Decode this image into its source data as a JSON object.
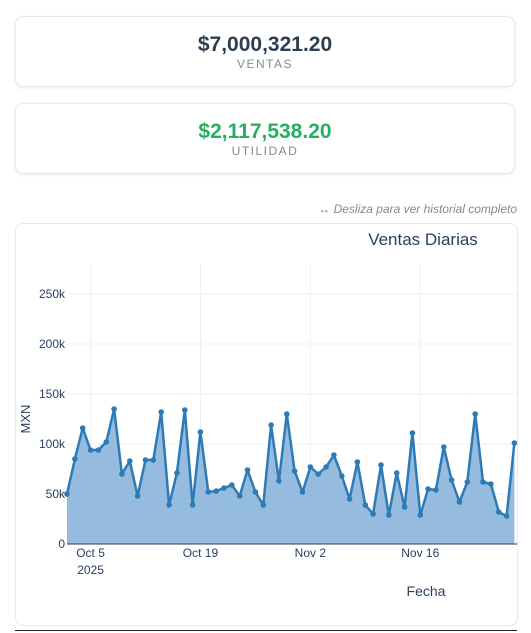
{
  "summary": {
    "ventas": {
      "value": "$7,000,321.20",
      "label": "VENTAS",
      "color": "#2c3e50"
    },
    "utilidad": {
      "value": "$2,117,538.20",
      "label": "UTILIDAD",
      "color": "#27ae60"
    }
  },
  "hint": "↔ Desliza para ver historial completo",
  "chart_data": {
    "type": "area",
    "title": "Ventas Diarias",
    "xlabel": "Fecha",
    "ylabel": "MXN",
    "x_ticks": [
      {
        "label": "Oct 5",
        "sublabel": "2025",
        "index": 3
      },
      {
        "label": "Oct 19",
        "index": 17
      },
      {
        "label": "Nov 2",
        "index": 31
      },
      {
        "label": "Nov 16",
        "index": 45
      }
    ],
    "y_ticks": [
      {
        "value": 0,
        "label": "0"
      },
      {
        "value": 50000,
        "label": "50k"
      },
      {
        "value": 100000,
        "label": "100k"
      },
      {
        "value": 150000,
        "label": "150k"
      },
      {
        "value": 200000,
        "label": "200k"
      },
      {
        "value": 250000,
        "label": "250k"
      }
    ],
    "ylim": [
      0,
      280000
    ],
    "grid": true,
    "line_color": "#2d7bb6",
    "fill_color": "#8fb8dc",
    "start_date": "2025-10-02",
    "values": [
      50000,
      85000,
      116000,
      94000,
      94000,
      102000,
      135000,
      70000,
      83000,
      48000,
      84000,
      84000,
      132000,
      39000,
      71000,
      134000,
      39000,
      112000,
      52000,
      53000,
      56000,
      59000,
      48000,
      74000,
      52000,
      39000,
      119000,
      63000,
      130000,
      73000,
      52000,
      77000,
      70000,
      77000,
      89000,
      68000,
      45000,
      82000,
      39000,
      30000,
      79000,
      29000,
      71000,
      37000,
      111000,
      29000,
      55000,
      54000,
      97000,
      64000,
      42000,
      62000,
      130000,
      62000,
      60000,
      32000,
      28000,
      101000
    ]
  }
}
